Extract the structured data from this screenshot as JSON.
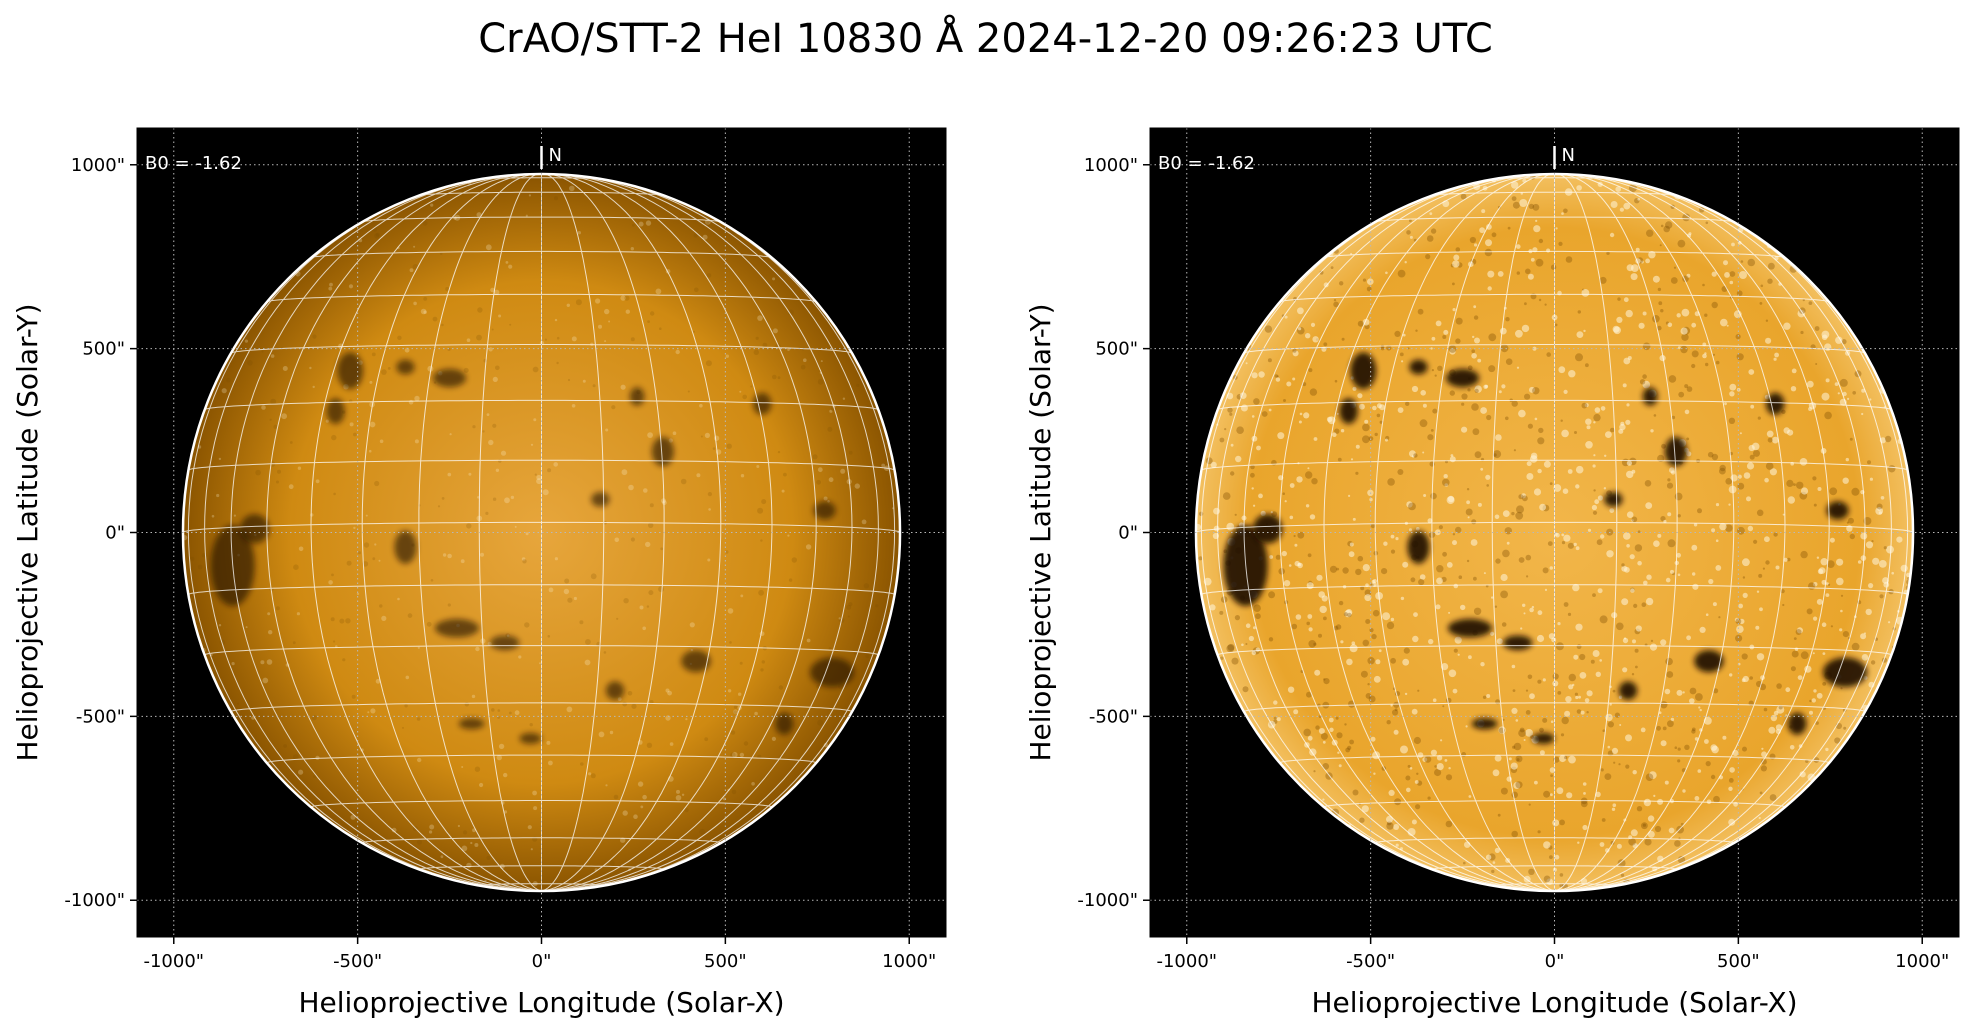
{
  "title": "CrAO/STT-2 HeI 10830 Å 2024-12-20 09:26:23 UTC",
  "colors": {
    "background": "#000000",
    "disk_left": "#d48a00",
    "disk_right": "#e39a14",
    "grid": "#ffffff",
    "limb": "#ffffff"
  },
  "panels": [
    {
      "name": "left",
      "processing": "raw intensity",
      "b0_label": "B0 = -1.62",
      "north_label": "N",
      "xlabel": "Helioprojective Longitude (Solar-X)",
      "ylabel": "Helioprojective Latitude (Solar-Y)",
      "xticks": [
        "-1000\"",
        "-500\"",
        "0\"",
        "500\"",
        "1000\""
      ],
      "yticks": [
        "1000\"",
        "500\"",
        "0\"",
        "-500\"",
        "-1000\""
      ]
    },
    {
      "name": "right",
      "processing": "contrast enhanced",
      "b0_label": "B0 = -1.62",
      "north_label": "N",
      "xlabel": "Helioprojective Longitude (Solar-X)",
      "ylabel": "Helioprojective Latitude (Solar-Y)",
      "xticks": [
        "-1000\"",
        "-500\"",
        "0\"",
        "500\"",
        "1000\""
      ],
      "yticks": [
        "1000\"",
        "500\"",
        "0\"",
        "-500\"",
        "-1000\""
      ]
    }
  ]
}
